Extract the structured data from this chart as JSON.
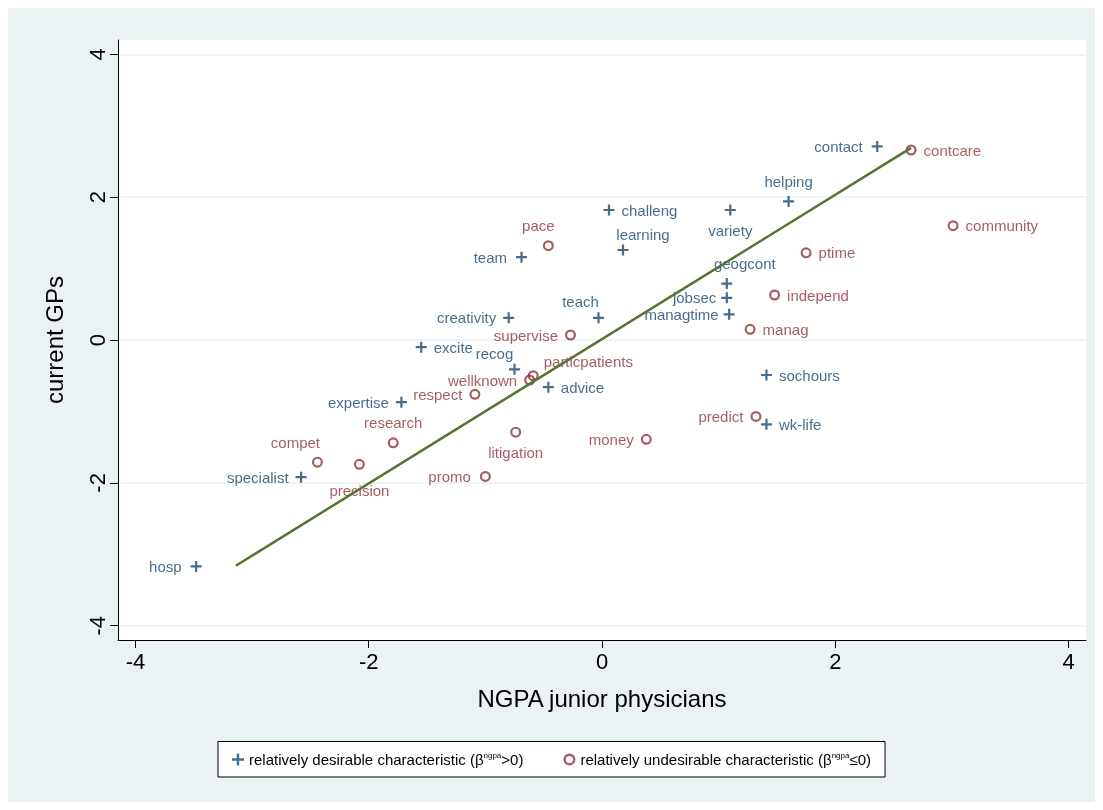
{
  "chart_data": {
    "type": "scatter",
    "xlabel": "NGPA junior physicians",
    "ylabel": "current GPs",
    "xlim": [
      -4.15,
      4.15
    ],
    "xticks": [
      -4,
      -2,
      0,
      2,
      4
    ],
    "ylim": [
      -4.2,
      4.2
    ],
    "yticks": [
      -4,
      -2,
      0,
      2,
      4
    ],
    "grid": "y",
    "legend": "bottom",
    "series": [
      {
        "name": "relatively desirable characteristic (β$^{ngpa}$>0)",
        "marker": "cross",
        "color": "#1a476f",
        "x": [
          2.36,
          1.6,
          1.1,
          0.06,
          0.18,
          -0.69,
          1.07,
          1.07,
          1.09,
          -0.03,
          -0.8,
          -1.55,
          -0.75,
          -0.46,
          1.41,
          -1.72,
          1.41,
          -2.58,
          -3.48
        ],
        "values": [
          2.71,
          1.94,
          1.82,
          1.82,
          1.26,
          1.16,
          0.79,
          0.59,
          0.36,
          0.31,
          0.31,
          -0.1,
          -0.41,
          -0.66,
          -0.49,
          -0.87,
          -1.18,
          -1.92,
          -3.17
        ]
      },
      {
        "name": "relatively undesirable characteristic (β$^{ngpa}$≤0)",
        "marker": "circle",
        "color": "#90353b",
        "x": [
          2.65,
          3.01,
          1.75,
          -0.46,
          1.48,
          1.27,
          -0.27,
          -0.59,
          -0.62,
          -1.09,
          1.32,
          0.38,
          -0.74,
          -1.79,
          -2.44,
          -2.08,
          -1.0
        ],
        "values": [
          2.66,
          1.6,
          1.22,
          1.32,
          0.63,
          0.15,
          0.07,
          -0.5,
          -0.56,
          -0.76,
          -1.07,
          -1.39,
          -1.29,
          -1.44,
          -1.71,
          -1.74,
          -1.91
        ]
      },
      {
        "type": "line",
        "marker": "none",
        "color": "#55752f",
        "x": [
          -3.14,
          2.65
        ],
        "values": [
          -3.16,
          2.69
        ]
      }
    ],
    "annotations": [
      {
        "text": "contact",
        "x": 2.36,
        "y": 2.71
      },
      {
        "text": "helping",
        "x": 1.6,
        "y": 1.94
      },
      {
        "text": "variety",
        "x": 1.1,
        "y": 1.82
      },
      {
        "text": "challeng",
        "x": 0.06,
        "y": 1.82
      },
      {
        "text": "learning",
        "x": 0.18,
        "y": 1.26
      },
      {
        "text": "team",
        "x": -0.69,
        "y": 1.16
      },
      {
        "text": "geogcont",
        "x": 1.07,
        "y": 0.79
      },
      {
        "text": "jobsec",
        "x": 1.07,
        "y": 0.59
      },
      {
        "text": "managtime",
        "x": 1.09,
        "y": 0.36
      },
      {
        "text": "teach",
        "x": -0.03,
        "y": 0.31
      },
      {
        "text": "creativity",
        "x": -0.8,
        "y": 0.31
      },
      {
        "text": "excite",
        "x": -1.55,
        "y": -0.1
      },
      {
        "text": "recog",
        "x": -0.75,
        "y": -0.41
      },
      {
        "text": "advice",
        "x": -0.46,
        "y": -0.66
      },
      {
        "text": "sochours",
        "x": 1.41,
        "y": -0.49
      },
      {
        "text": "expertise",
        "x": -1.72,
        "y": -0.87
      },
      {
        "text": "wk-life",
        "x": 1.41,
        "y": -1.18
      },
      {
        "text": "specialist",
        "x": -2.58,
        "y": -1.92
      },
      {
        "text": "hosp",
        "x": -3.48,
        "y": -3.17
      },
      {
        "text": "contcare",
        "x": 2.65,
        "y": 2.66
      },
      {
        "text": "community",
        "x": 3.01,
        "y": 1.6
      },
      {
        "text": "ptime",
        "x": 1.75,
        "y": 1.22
      },
      {
        "text": "pace",
        "x": -0.46,
        "y": 1.32
      },
      {
        "text": "independ",
        "x": 1.48,
        "y": 0.63
      },
      {
        "text": "manag",
        "x": 1.27,
        "y": 0.15
      },
      {
        "text": "supervise",
        "x": -0.27,
        "y": 0.07
      },
      {
        "text": "particpatients",
        "x": -0.59,
        "y": -0.5
      },
      {
        "text": "wellknown",
        "x": -0.62,
        "y": -0.56
      },
      {
        "text": "respect",
        "x": -1.09,
        "y": -0.76
      },
      {
        "text": "predict",
        "x": 1.32,
        "y": -1.07
      },
      {
        "text": "money",
        "x": 0.38,
        "y": -1.39
      },
      {
        "text": "litigation",
        "x": -0.74,
        "y": -1.29
      },
      {
        "text": "research",
        "x": -1.79,
        "y": -1.44
      },
      {
        "text": "compet",
        "x": -2.44,
        "y": -1.71
      },
      {
        "text": "precision",
        "x": -2.08,
        "y": -1.74
      },
      {
        "text": "promo",
        "x": -1.0,
        "y": -1.91
      }
    ]
  }
}
